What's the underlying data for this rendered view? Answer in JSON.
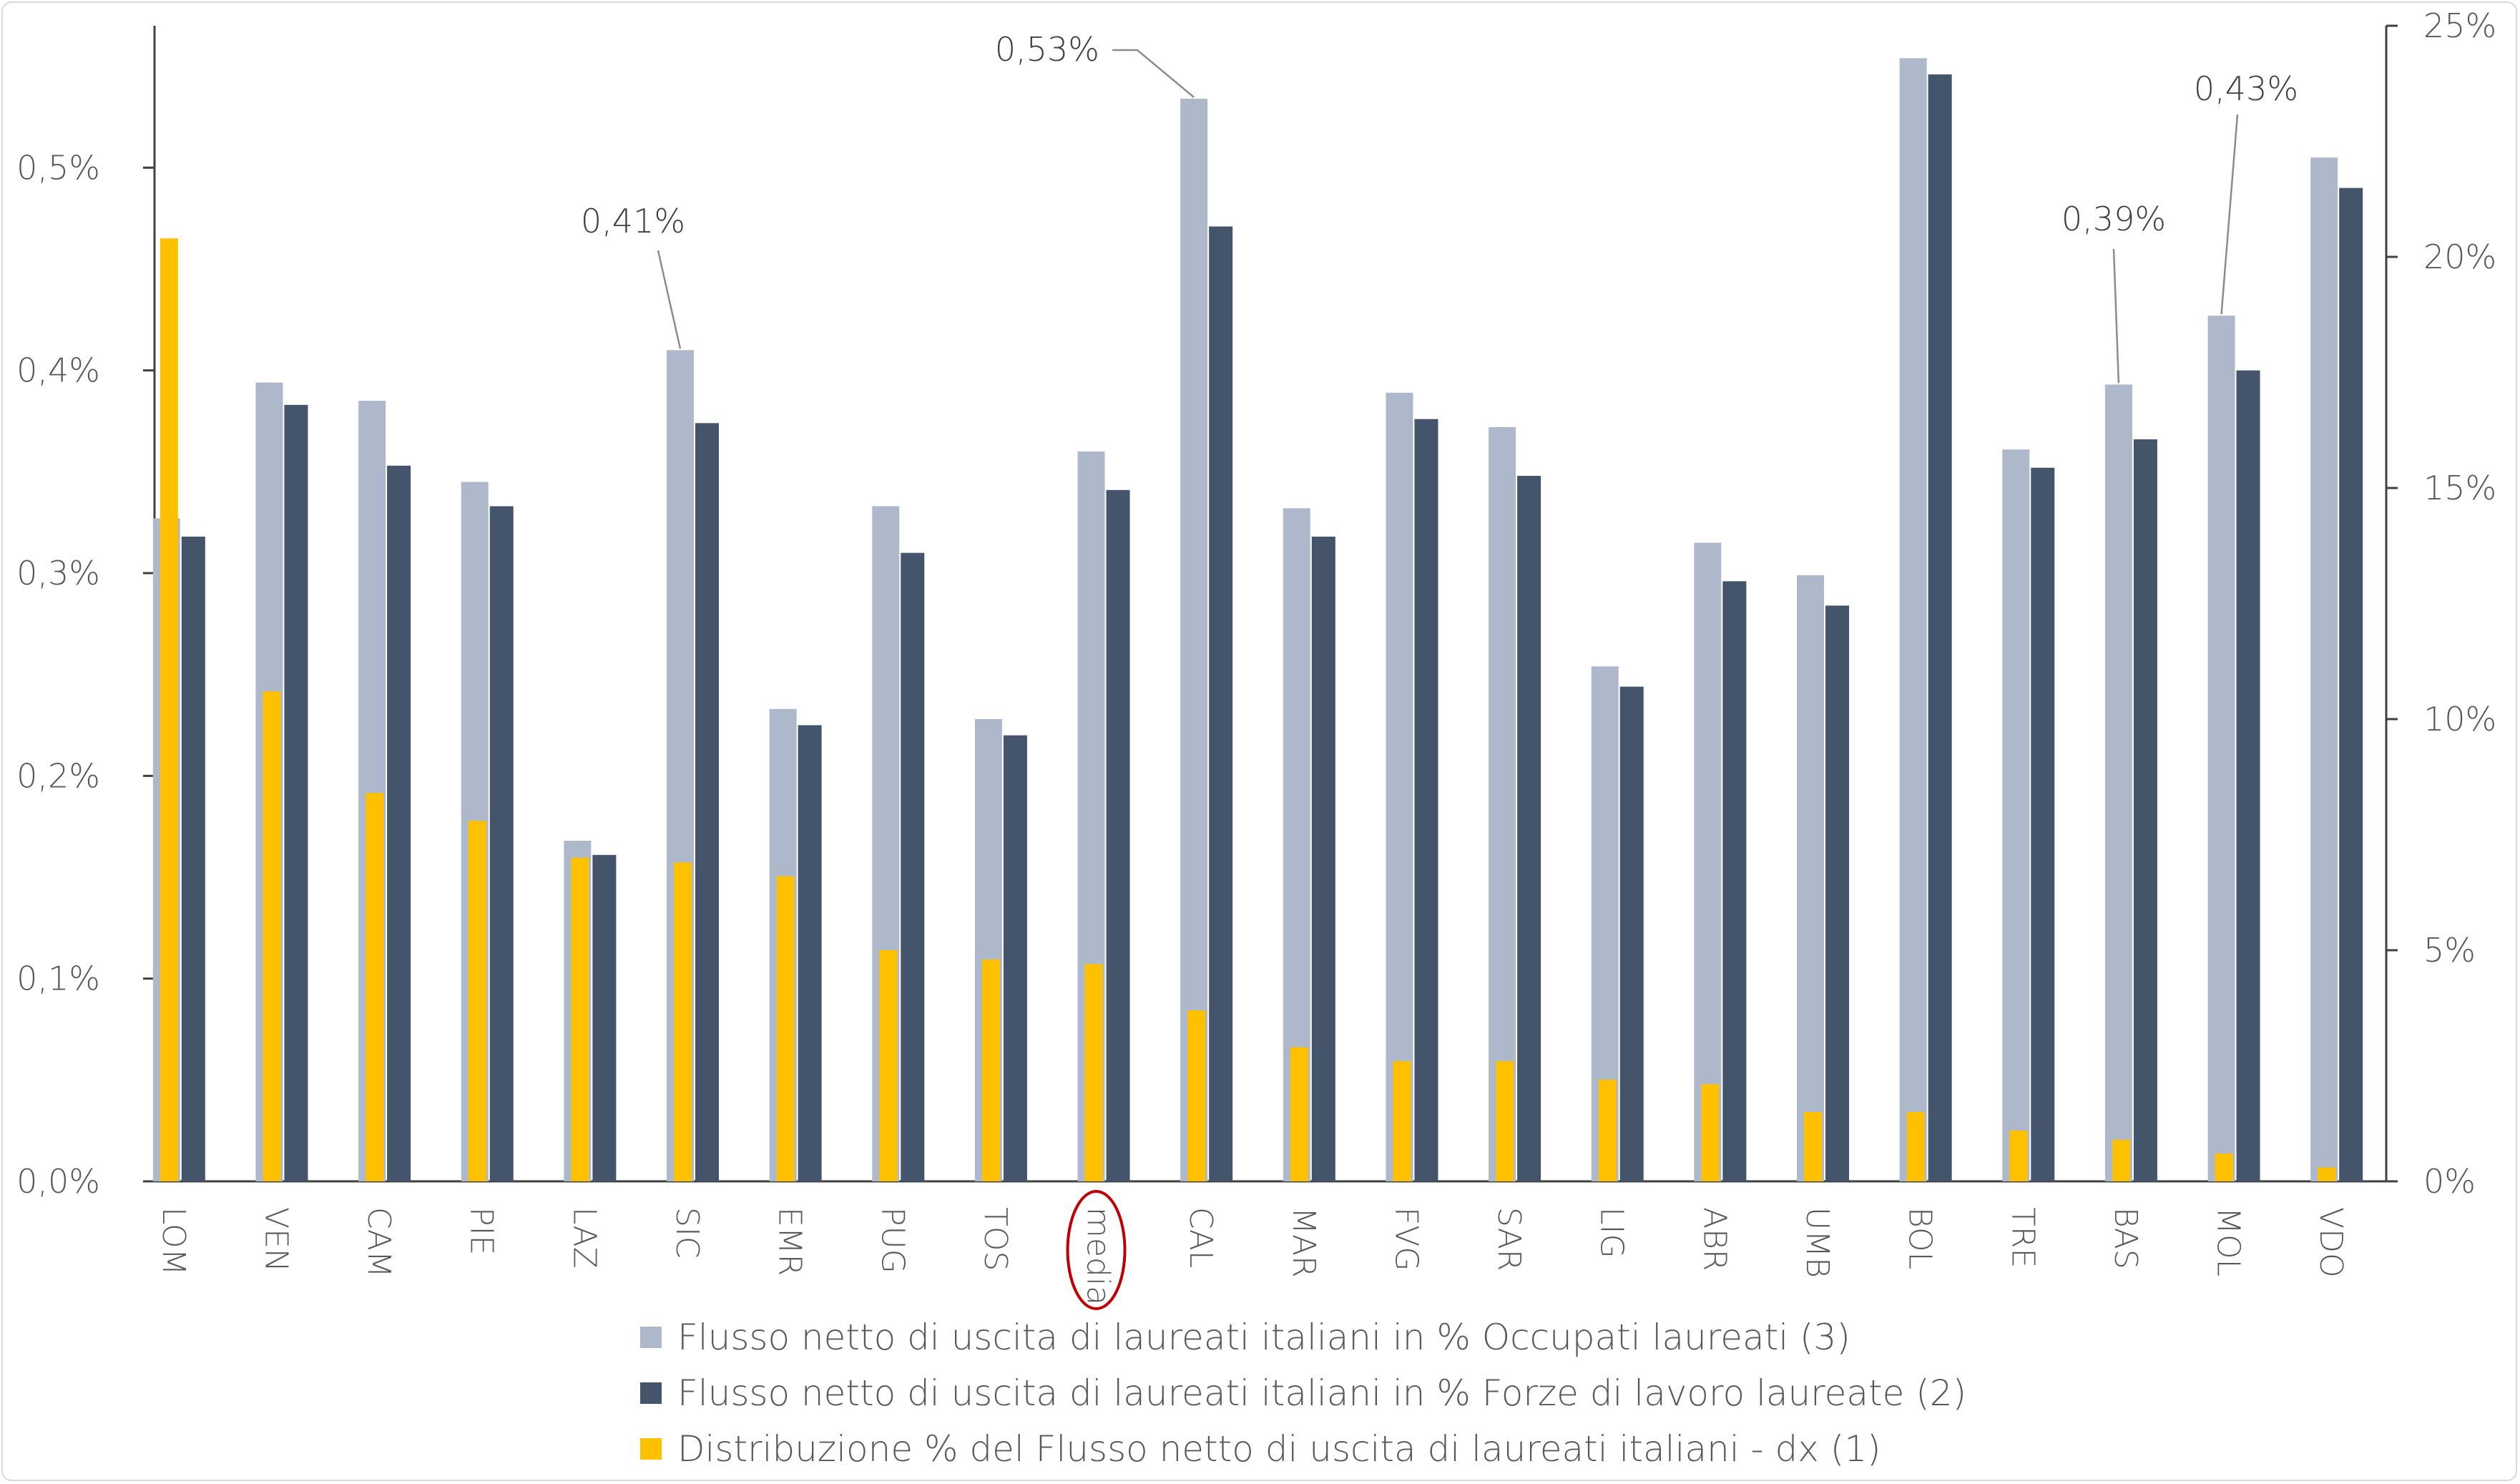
{
  "chart_data": {
    "type": "bar",
    "categories": [
      "LOM",
      "VEN",
      "CAM",
      "PIE",
      "LAZ",
      "SIC",
      "EMR",
      "PUG",
      "TOS",
      "media",
      "CAL",
      "MAR",
      "FVG",
      "SAR",
      "LIG",
      "ABR",
      "UMB",
      "BOL",
      "TRE",
      "BAS",
      "MOL",
      "VDO"
    ],
    "highlighted_category": "media",
    "highlight_color": "#c00000",
    "series": [
      {
        "name": "Flusso netto di uscita di laureati italiani in % Occupati laureati (3)",
        "axis": "left",
        "color": "#adb9ca",
        "values": [
          0.327,
          0.394,
          0.385,
          0.345,
          0.168,
          0.41,
          0.233,
          0.333,
          0.228,
          0.36,
          0.534,
          0.332,
          0.389,
          0.372,
          0.254,
          0.315,
          0.299,
          0.554,
          0.361,
          0.393,
          0.427,
          0.505
        ]
      },
      {
        "name": "Flusso netto di uscita di laureati italiani in % Forze di lavoro laureate (2)",
        "axis": "left",
        "color": "#44546a",
        "values": [
          0.318,
          0.383,
          0.353,
          0.333,
          0.161,
          0.374,
          0.225,
          0.31,
          0.22,
          0.341,
          0.471,
          0.318,
          0.376,
          0.348,
          0.244,
          0.296,
          0.284,
          0.546,
          0.352,
          0.366,
          0.4,
          0.49
        ]
      },
      {
        "name": "Distribuzione % del Flusso netto di uscita di laureati italiani - dx (1)",
        "axis": "right",
        "color": "#ffc000",
        "values": [
          20.4,
          10.6,
          8.4,
          7.8,
          7.0,
          6.9,
          6.6,
          5.0,
          4.8,
          4.7,
          3.7,
          2.9,
          2.6,
          2.6,
          2.2,
          2.1,
          1.5,
          1.5,
          1.1,
          0.9,
          0.6,
          0.3
        ]
      }
    ],
    "left_axis": {
      "ylim": [
        0,
        0.57
      ],
      "ticks": [
        0,
        0.1,
        0.2,
        0.3,
        0.4,
        0.5
      ],
      "tick_labels": [
        "0,0%",
        "0,1%",
        "0,2%",
        "0,3%",
        "0,4%",
        "0,5%"
      ]
    },
    "right_axis": {
      "ylim": [
        0,
        25
      ],
      "ticks": [
        0,
        5,
        10,
        15,
        20,
        25
      ],
      "tick_labels": [
        "0%",
        "5%",
        "10%",
        "15%",
        "20%",
        "25%"
      ]
    },
    "annotations": [
      {
        "text": "0,41%",
        "category": "SIC"
      },
      {
        "text": "0,53%",
        "category": "CAL"
      },
      {
        "text": "0,39%",
        "category": "BAS"
      },
      {
        "text": "0,43%",
        "category": "MOL"
      }
    ],
    "legend_position": "bottom",
    "grid": false
  }
}
